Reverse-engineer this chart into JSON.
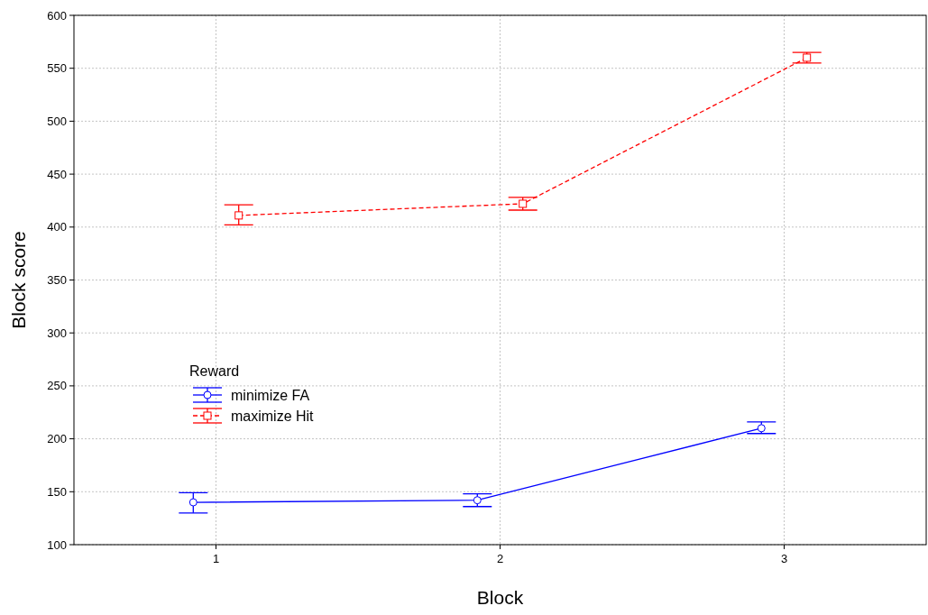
{
  "chart_data": {
    "type": "line",
    "xlabel": "Block",
    "ylabel": "Block score",
    "legend_title": "Reward",
    "xlim": [
      0.5,
      3.5
    ],
    "xticks": [
      1,
      2,
      3
    ],
    "ylim": [
      100,
      600
    ],
    "yticks": [
      100,
      150,
      200,
      250,
      300,
      350,
      400,
      450,
      500,
      550,
      600
    ],
    "grid": true,
    "legend": "left",
    "series": [
      {
        "name": "minimize FA",
        "color": "#0000ff",
        "marker": "circle",
        "line_style": "solid",
        "x": [
          0.92,
          1.92,
          2.92
        ],
        "values": [
          140,
          142,
          210
        ],
        "errors": [
          [
            130,
            149
          ],
          [
            136,
            148
          ],
          [
            205,
            216
          ]
        ]
      },
      {
        "name": "maximize Hit",
        "color": "#ff0000",
        "marker": "square",
        "line_style": "dashed",
        "x": [
          1.08,
          2.08,
          3.08
        ],
        "values": [
          411,
          422,
          560
        ],
        "errors": [
          [
            402,
            421
          ],
          [
            416,
            428
          ],
          [
            555,
            565
          ]
        ]
      }
    ]
  }
}
